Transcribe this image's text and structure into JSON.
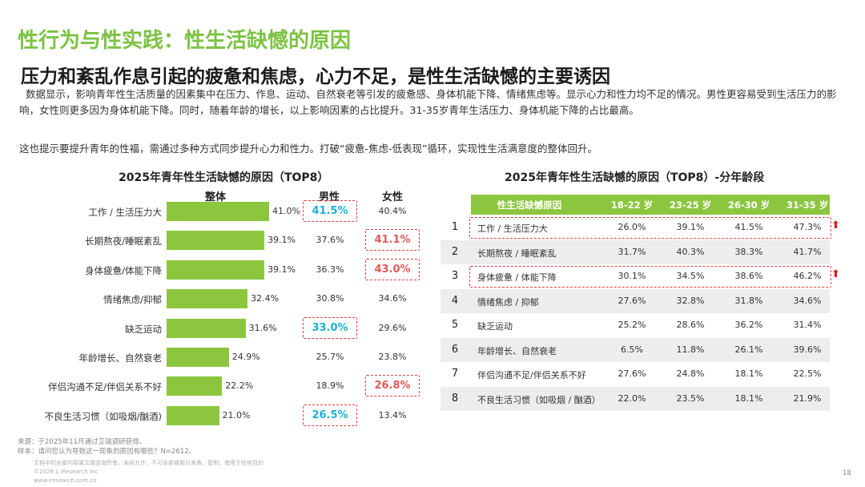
{
  "title": "性行为与性实践：性生活缺憾的原因",
  "subtitle": "压力和紊乱作息引起的疲惫和焦虑，心力不足，是性生活缺憾的主要诱因",
  "paragraphs": [
    "数据显示，影响青年性生活质量的因素集中在压力、作息、运动、自然衰老等引发的疲惫感、身体机能下降、情绪焦虑等。显示心力和性力均不足的情况。男性更容易受到生活压力的影响，女性则更多因为身体机能下降。同时，随着年龄的增长，以上影响因素的占比提升。31-35岁青年生活压力、身体机能下降的占比最高。",
    "这也提示要提升青年的性福，需通过多种方式同步提升心力和性力。打破“疲惫-焦虑-低表现”循环，实现性生活满意度的整体回升。"
  ],
  "colors": {
    "accent": "#7cc243",
    "bar": "#8cc63f",
    "highlight": "#e04040",
    "male_hl": "#1ab0d8",
    "female_hl": "#e05a5a",
    "row_alt": "#ededed",
    "arrow": "#d42020"
  },
  "chart_data": [
    {
      "type": "bar",
      "title": "2025年青年性生活缺憾的原因（TOP8）",
      "column_headers": [
        "整体",
        "男性",
        "女性"
      ],
      "categories": [
        "工作 / 生活压力大",
        "长期熬夜/睡眠紊乱",
        "身体疲惫/体能下降",
        "情绪焦虑/抑郁",
        "缺乏运动",
        "年龄增长、自然衰老",
        "伴侣沟通不足/伴侣关系不好",
        "不良生活习惯（如吸烟/酗酒)"
      ],
      "series": [
        {
          "name": "整体",
          "values": [
            41.0,
            39.1,
            39.1,
            32.4,
            31.6,
            24.9,
            22.2,
            21.0
          ],
          "labels": [
            "41.0%",
            "39.1%",
            "39.1%",
            "32.4%",
            "31.6%",
            "24.9%",
            "22.2%",
            "21.0%"
          ]
        },
        {
          "name": "男性",
          "values": [
            41.5,
            37.6,
            36.3,
            30.8,
            33.0,
            25.7,
            18.9,
            26.5
          ],
          "labels": [
            "41.5%",
            "37.6%",
            "36.3%",
            "30.8%",
            "33.0%",
            "25.7%",
            "18.9%",
            "26.5%"
          ],
          "highlighted": [
            0,
            4,
            7
          ]
        },
        {
          "name": "女性",
          "values": [
            40.4,
            41.1,
            43.0,
            34.6,
            29.6,
            23.8,
            26.8,
            13.4
          ],
          "labels": [
            "40.4%",
            "41.1%",
            "43.0%",
            "34.6%",
            "29.6%",
            "23.8%",
            "26.8%",
            "13.4%"
          ],
          "highlighted": [
            1,
            2,
            6
          ]
        }
      ],
      "ylim": [
        0,
        50
      ]
    },
    {
      "type": "table",
      "title": "2025年青年性生活缺憾的原因（TOP8）-分年龄段",
      "header": [
        "性生活缺憾原因",
        "18-22 岁",
        "23-25 岁",
        "26-30 岁",
        "31-35 岁"
      ],
      "rows": [
        {
          "rank": "1",
          "reason": "工作 / 生活压力大",
          "values": [
            "26.0%",
            "39.1%",
            "41.5%",
            "47.3%"
          ],
          "highlighted": true
        },
        {
          "rank": "2",
          "reason": "长期熬夜 / 睡眠紊乱",
          "values": [
            "31.7%",
            "40.3%",
            "38.3%",
            "41.7%"
          ],
          "highlighted": false
        },
        {
          "rank": "3",
          "reason": "身体疲惫 / 体能下降",
          "values": [
            "30.1%",
            "34.5%",
            "38.6%",
            "46.2%"
          ],
          "highlighted": true
        },
        {
          "rank": "4",
          "reason": "情绪焦虑 / 抑郁",
          "values": [
            "27.6%",
            "32.8%",
            "31.8%",
            "34.6%"
          ],
          "highlighted": false
        },
        {
          "rank": "5",
          "reason": "缺乏运动",
          "values": [
            "25.2%",
            "28.6%",
            "36.2%",
            "31.4%"
          ],
          "highlighted": false
        },
        {
          "rank": "6",
          "reason": "年龄增长、自然衰老",
          "values": [
            "6.5%",
            "11.8%",
            "26.1%",
            "39.6%"
          ],
          "highlighted": false
        },
        {
          "rank": "7",
          "reason": "伴侣沟通不足/伴侣关系不好",
          "values": [
            "27.6%",
            "24.8%",
            "18.1%",
            "22.5%"
          ],
          "highlighted": false
        },
        {
          "rank": "8",
          "reason": "不良生活习惯（如吸烟 / 酗酒）",
          "values": [
            "22.0%",
            "23.5%",
            "18.1%",
            "21.9%"
          ],
          "highlighted": false
        }
      ],
      "arrow_symbol": "⬆"
    }
  ],
  "footer": {
    "source": "来源：于2025年11月通过艾瑞调研获得。",
    "sample": "样本：请问您认为导致这一现象的原因有哪些？N=2612。",
    "disclaimer": "文档中的全部内容属艾瑞咨询所有，未经允许，不可全部或部分发表、复制、使用于任何目的",
    "copyright": "©2026.1 iResearch Inc",
    "website": "www.iresearch.com.cn",
    "page": "18"
  }
}
